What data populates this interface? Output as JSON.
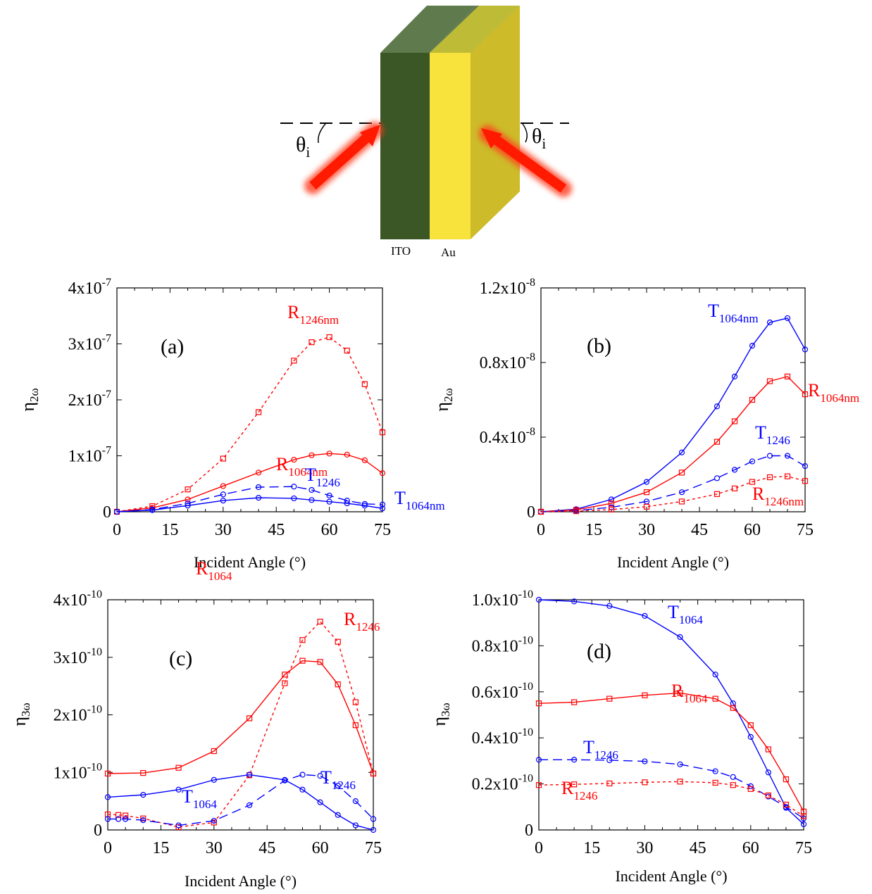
{
  "diagram": {
    "layer1_label": "ITO",
    "layer2_label": "Au",
    "angle_symbol": "θ",
    "angle_subscript": "i",
    "colors": {
      "ito_front": "#3b5726",
      "ito_top": "#5f7a4d",
      "au_front": "#f8e33c",
      "au_side": "#cdbb2a",
      "au_top": "#c9c234",
      "beam": "#ff1a00"
    }
  },
  "colors": {
    "red": "#ff0000",
    "blue": "#0000ff",
    "axis": "#000000"
  },
  "chart_data": [
    {
      "type": "line",
      "panel_label": "(a)",
      "ylabel": "η",
      "ylabel_sub": "2ω",
      "xlabel": "Incident Angle (°)",
      "xlim": [
        0,
        75
      ],
      "ylim": [
        0,
        4e-07
      ],
      "xticks": [
        0,
        15,
        30,
        45,
        60,
        75
      ],
      "xtick_labels": [
        "0",
        "15",
        "30",
        "45",
        "60",
        "75"
      ],
      "yticks": [
        0,
        1e-07,
        2e-07,
        3e-07,
        4e-07
      ],
      "ytick_labels": [
        {
          "base": "0",
          "exp": ""
        },
        {
          "base": "1x10",
          "exp": "-7"
        },
        {
          "base": "2x10",
          "exp": "-7"
        },
        {
          "base": "3x10",
          "exp": "-7"
        },
        {
          "base": "4x10",
          "exp": "-7"
        }
      ],
      "series": [
        {
          "label_main": "R",
          "label_sub": "1246nm",
          "color": "red",
          "dash": "short",
          "marker": "square",
          "x": [
            0,
            10,
            20,
            30,
            40,
            50,
            55,
            60,
            65,
            70,
            75
          ],
          "y": [
            0,
            1e-08,
            4e-08,
            9.5e-08,
            1.78e-07,
            2.7e-07,
            3.03e-07,
            3.12e-07,
            2.88e-07,
            2.28e-07,
            1.42e-07
          ]
        },
        {
          "label_main": "R",
          "label_sub": "1064nm",
          "color": "red",
          "dash": "solid",
          "marker": "circle",
          "x": [
            0,
            10,
            20,
            30,
            40,
            50,
            55,
            60,
            65,
            70,
            75
          ],
          "y": [
            0,
            7e-09,
            2.2e-08,
            4.6e-08,
            7e-08,
            9.3e-08,
            1.01e-07,
            1.04e-07,
            1.02e-07,
            9.2e-08,
            6.9e-08
          ]
        },
        {
          "label_main": "T",
          "label_sub": "1246",
          "color": "blue",
          "dash": "long",
          "marker": "circle",
          "x": [
            0,
            10,
            20,
            30,
            40,
            50,
            55,
            60,
            65,
            70,
            75
          ],
          "y": [
            0,
            4e-09,
            1.5e-08,
            3.1e-08,
            4.4e-08,
            4.5e-08,
            3.9e-08,
            2.9e-08,
            2e-08,
            1.4e-08,
            1.3e-08
          ]
        },
        {
          "label_main": "T",
          "label_sub": "1064nm",
          "color": "blue",
          "dash": "solid",
          "marker": "circle",
          "x": [
            0,
            10,
            20,
            30,
            40,
            50,
            55,
            60,
            65,
            70,
            75
          ],
          "y": [
            0,
            3e-09,
            1.1e-08,
            2e-08,
            2.5e-08,
            2.4e-08,
            2.1e-08,
            1.8e-08,
            1.5e-08,
            1.1e-08,
            6e-09
          ]
        }
      ]
    },
    {
      "type": "line",
      "panel_label": "(b)",
      "ylabel": "η",
      "ylabel_sub": "2ω",
      "xlabel": "Incident Angle (°)",
      "xlim": [
        0,
        75
      ],
      "ylim": [
        0,
        1.2e-08
      ],
      "xticks": [
        0,
        15,
        30,
        45,
        60,
        75
      ],
      "xtick_labels": [
        "0",
        "15",
        "30",
        "45",
        "60",
        "75"
      ],
      "yticks": [
        0,
        4e-09,
        8e-09,
        1.2e-08
      ],
      "ytick_labels": [
        {
          "base": "0",
          "exp": ""
        },
        {
          "base": "0.4x10",
          "exp": "-8"
        },
        {
          "base": "0.8x10",
          "exp": "-8"
        },
        {
          "base": "1.2x10",
          "exp": "-8"
        }
      ],
      "series": [
        {
          "label_main": "T",
          "label_sub": "1064nm",
          "color": "blue",
          "dash": "solid",
          "marker": "circle",
          "x": [
            0,
            10,
            20,
            30,
            40,
            50,
            55,
            60,
            65,
            70,
            75
          ],
          "y": [
            0,
            1.4e-10,
            6.6e-10,
            1.6e-09,
            3.18e-09,
            5.65e-09,
            7.25e-09,
            8.9e-09,
            1.015e-08,
            1.038e-08,
            8.7e-09
          ]
        },
        {
          "label_main": "R",
          "label_sub": "1064nm",
          "color": "red",
          "dash": "solid",
          "marker": "square",
          "x": [
            0,
            10,
            20,
            30,
            40,
            50,
            55,
            60,
            65,
            70,
            75
          ],
          "y": [
            0,
            1e-10,
            4.5e-10,
            1.05e-09,
            2.1e-09,
            3.75e-09,
            4.85e-09,
            6e-09,
            7e-09,
            7.25e-09,
            6.3e-09
          ]
        },
        {
          "label_main": "T",
          "label_sub": "1246",
          "color": "blue",
          "dash": "long",
          "marker": "circle",
          "x": [
            0,
            10,
            20,
            30,
            40,
            50,
            55,
            60,
            65,
            70,
            75
          ],
          "y": [
            0,
            6e-11,
            2.4e-10,
            5.5e-10,
            1.05e-09,
            1.8e-09,
            2.25e-09,
            2.7e-09,
            3e-09,
            3e-09,
            2.45e-09
          ]
        },
        {
          "label_main": "R",
          "label_sub": "1246nm",
          "color": "red",
          "dash": "short",
          "marker": "square",
          "x": [
            0,
            10,
            20,
            30,
            40,
            50,
            55,
            60,
            65,
            70,
            75
          ],
          "y": [
            0,
            3e-11,
            1.2e-10,
            2.7e-10,
            5.5e-10,
            9.5e-10,
            1.25e-09,
            1.6e-09,
            1.85e-09,
            1.9e-09,
            1.65e-09
          ]
        }
      ]
    },
    {
      "type": "line",
      "panel_label": "(c)",
      "ylabel": "η",
      "ylabel_sub": "3ω",
      "xlabel": "Incident Angle (°)",
      "xlim": [
        0,
        75
      ],
      "ylim": [
        0,
        4e-10
      ],
      "xticks": [
        0,
        15,
        30,
        45,
        60,
        75
      ],
      "xtick_labels": [
        "0",
        "15",
        "30",
        "45",
        "60",
        "75"
      ],
      "yticks": [
        0,
        1e-10,
        2e-10,
        3e-10,
        4e-10
      ],
      "ytick_labels": [
        {
          "base": "0",
          "exp": ""
        },
        {
          "base": "1x10",
          "exp": "-10"
        },
        {
          "base": "2x10",
          "exp": "-10"
        },
        {
          "base": "3x10",
          "exp": "-10"
        },
        {
          "base": "4x10",
          "exp": "-10"
        }
      ],
      "series": [
        {
          "label_main": "R",
          "label_sub": "1246",
          "color": "red",
          "dash": "short",
          "marker": "square",
          "x": [
            0,
            3,
            5,
            10,
            20,
            30,
            40,
            50,
            55,
            60,
            65,
            70,
            75
          ],
          "y": [
            2.7e-11,
            2.6e-11,
            2.5e-11,
            2e-11,
            5e-12,
            1.3e-11,
            9.5e-11,
            2.55e-10,
            3.3e-10,
            3.62e-10,
            3.27e-10,
            2.22e-10,
            9.8e-11
          ]
        },
        {
          "label_main": "R",
          "label_sub": "1064",
          "color": "red",
          "dash": "solid",
          "marker": "square",
          "x": [
            0,
            10,
            20,
            30,
            40,
            50,
            55,
            60,
            65,
            70,
            75
          ],
          "y": [
            9.8e-11,
            9.9e-11,
            1.08e-10,
            1.37e-10,
            1.94e-10,
            2.7e-10,
            2.94e-10,
            2.92e-10,
            2.53e-10,
            1.82e-10,
            9.8e-11
          ]
        },
        {
          "label_main": "T",
          "label_sub": "1246",
          "color": "blue",
          "dash": "long",
          "marker": "circle",
          "x": [
            0,
            3,
            5,
            10,
            20,
            30,
            40,
            50,
            55,
            60,
            65,
            70,
            75
          ],
          "y": [
            1.9e-11,
            1.9e-11,
            1.9e-11,
            1.7e-11,
            8e-12,
            1.6e-11,
            4.3e-11,
            8.6e-11,
            9.6e-11,
            9.4e-11,
            7.7e-11,
            5e-11,
            1.9e-11
          ]
        },
        {
          "label_main": "T",
          "label_sub": "1064",
          "color": "blue",
          "dash": "solid",
          "marker": "circle",
          "x": [
            0,
            10,
            20,
            30,
            40,
            50,
            55,
            60,
            65,
            70,
            75
          ],
          "y": [
            5.7e-11,
            6.1e-11,
            7e-11,
            8.7e-11,
            9.6e-11,
            8.7e-11,
            7e-11,
            4.8e-11,
            2.6e-11,
            8e-12,
            0
          ]
        }
      ]
    },
    {
      "type": "line",
      "panel_label": "(d)",
      "ylabel": "η",
      "ylabel_sub": "3ω",
      "xlabel": "Incident Angle (°)",
      "xlim": [
        0,
        75
      ],
      "ylim": [
        0,
        1e-10
      ],
      "xticks": [
        0,
        15,
        30,
        45,
        60,
        75
      ],
      "xtick_labels": [
        "0",
        "15",
        "30",
        "45",
        "60",
        "75"
      ],
      "yticks": [
        0,
        2e-11,
        4e-11,
        6e-11,
        8e-11,
        1e-10
      ],
      "ytick_labels": [
        {
          "base": "0",
          "exp": ""
        },
        {
          "base": "0.2x10",
          "exp": "-10"
        },
        {
          "base": "0.4x10",
          "exp": "-10"
        },
        {
          "base": "0.6x10",
          "exp": "-10"
        },
        {
          "base": "0.8x10",
          "exp": "-10"
        },
        {
          "base": "1.0x10",
          "exp": "-10"
        }
      ],
      "series": [
        {
          "label_main": "T",
          "label_sub": "1064",
          "color": "blue",
          "dash": "solid",
          "marker": "circle",
          "x": [
            0,
            10,
            20,
            30,
            40,
            50,
            55,
            60,
            65,
            70,
            75
          ],
          "y": [
            1e-10,
            9.93e-11,
            9.73e-11,
            9.3e-11,
            8.38e-11,
            6.75e-11,
            5.5e-11,
            4.04e-11,
            2.5e-11,
            9.6e-12,
            2.5e-12
          ]
        },
        {
          "label_main": "R",
          "label_sub": "1064",
          "color": "red",
          "dash": "solid",
          "marker": "square",
          "x": [
            0,
            10,
            20,
            30,
            40,
            50,
            55,
            60,
            65,
            70,
            75
          ],
          "y": [
            5.5e-11,
            5.55e-11,
            5.7e-11,
            5.85e-11,
            5.95e-11,
            5.7e-11,
            5.3e-11,
            4.55e-11,
            3.5e-11,
            2.2e-11,
            8e-12
          ]
        },
        {
          "label_main": "T",
          "label_sub": "1246",
          "color": "blue",
          "dash": "long",
          "marker": "circle",
          "x": [
            0,
            10,
            20,
            30,
            40,
            50,
            55,
            60,
            65,
            70,
            75
          ],
          "y": [
            3.05e-11,
            3.05e-11,
            3.03e-11,
            2.98e-11,
            2.85e-11,
            2.55e-11,
            2.3e-11,
            1.9e-11,
            1.45e-11,
            1e-11,
            5e-12
          ]
        },
        {
          "label_main": "R",
          "label_sub": "1246",
          "color": "red",
          "dash": "short",
          "marker": "square",
          "x": [
            0,
            10,
            20,
            30,
            40,
            50,
            55,
            60,
            65,
            70,
            75
          ],
          "y": [
            1.95e-11,
            1.98e-11,
            2.02e-11,
            2.07e-11,
            2.1e-11,
            2.05e-11,
            1.95e-11,
            1.78e-11,
            1.5e-11,
            1.1e-11,
            6e-12
          ]
        }
      ]
    }
  ]
}
